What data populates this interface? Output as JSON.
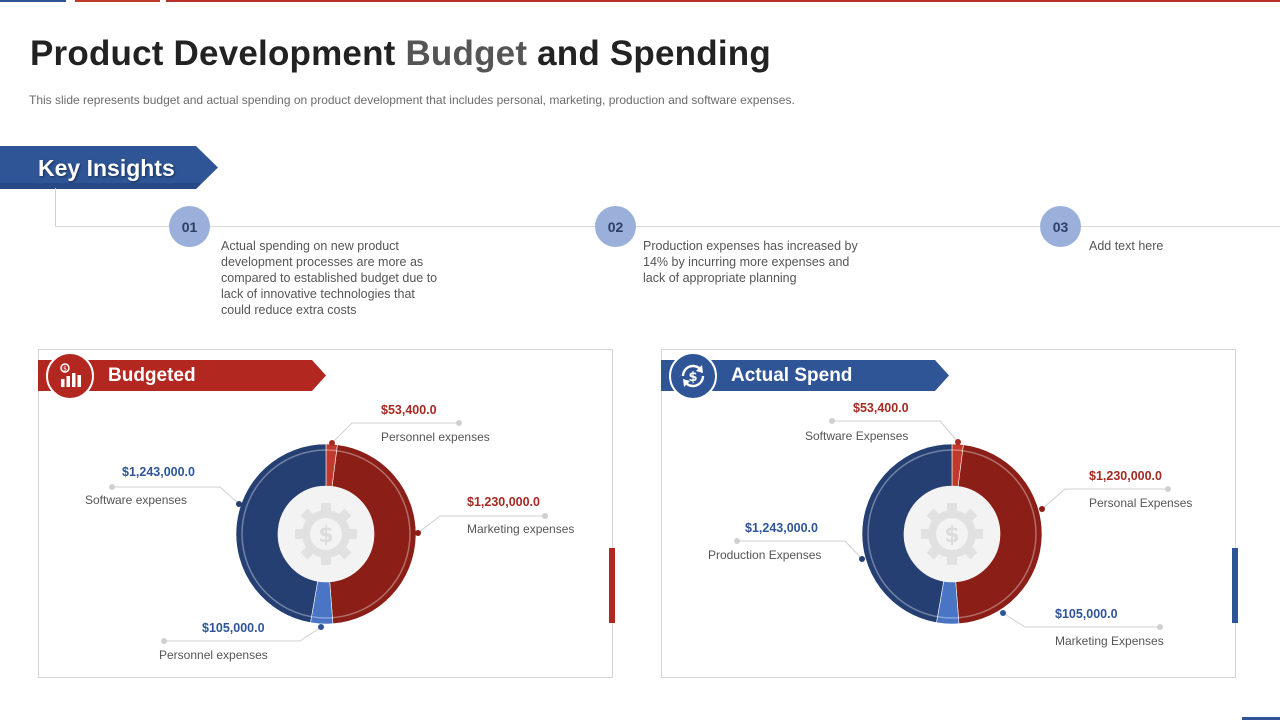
{
  "header": {
    "title_a": "Product Development ",
    "title_b": "Budget",
    "title_c": " and Spending",
    "subtitle": "This slide represents budget and actual spending on product development  that includes personal,  marketing,  production and software  expenses."
  },
  "key_insights": {
    "heading": "Key Insights",
    "items": [
      {
        "num": "01",
        "lines": [
          "Actual spending  on new product",
          "development  processes are more as",
          "compared  to established budget due to",
          "lack of innovative  technologies that",
          "could reduce extra costs"
        ]
      },
      {
        "num": "02",
        "lines": [
          "Production  expenses has increased by",
          "14% by incurring more expenses and",
          "lack of appropriate  planning"
        ]
      },
      {
        "num": "03",
        "lines": [
          "Add text here"
        ]
      }
    ]
  },
  "colors": {
    "red": "#a52a22",
    "dark_red": "#8b1e17",
    "blue": "#2f5597",
    "navy": "#253f73",
    "light_blue": "#4a74c4",
    "circle": "#9ab0da"
  },
  "budgeted": {
    "title": "Budgeted",
    "icon": "bar-chart-icon",
    "slices": [
      {
        "name": "Personnel expenses",
        "value": "$53,400.0",
        "amount": 53400,
        "color": "#c0392b"
      },
      {
        "name": "Marketing expenses",
        "value": "$1,230,000.0",
        "amount": 1230000,
        "color": "#8b1e17"
      },
      {
        "name": "Personnel expenses",
        "value": "$105,000.0",
        "amount": 105000,
        "color": "#4a74c4"
      },
      {
        "name": "Software expenses",
        "value": "$1,243,000.0",
        "amount": 1243000,
        "color": "#253f73"
      }
    ]
  },
  "actual": {
    "title": "Actual Spend",
    "icon": "dollar-cycle-icon",
    "slices": [
      {
        "name": "Software Expenses",
        "value": "$53,400.0",
        "amount": 53400,
        "color": "#c0392b"
      },
      {
        "name": "Personal Expenses",
        "value": "$1,230,000.0",
        "amount": 1230000,
        "color": "#8b1e17"
      },
      {
        "name": "Marketing Expenses",
        "value": "$105,000.0",
        "amount": 105000,
        "color": "#4a74c4"
      },
      {
        "name": "Production Expenses",
        "value": "$1,243,000.0",
        "amount": 1243000,
        "color": "#253f73"
      }
    ]
  }
}
